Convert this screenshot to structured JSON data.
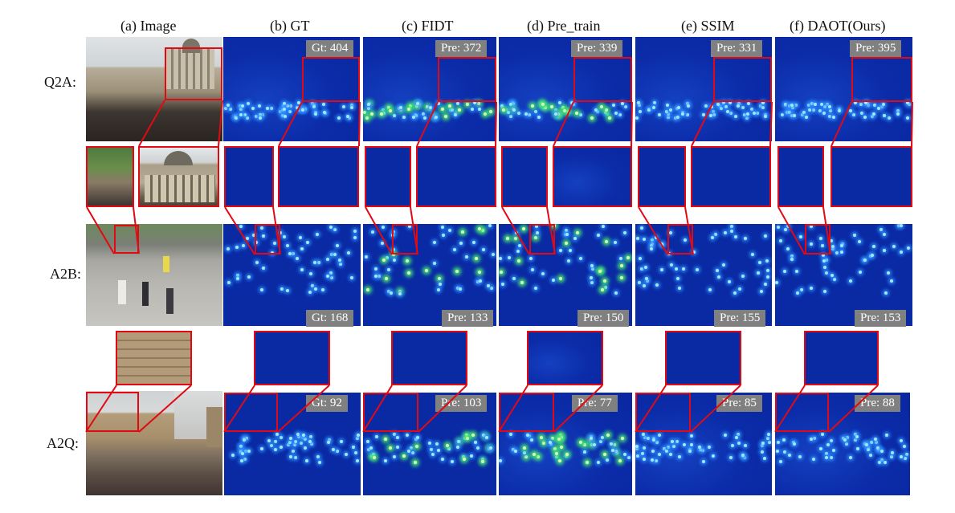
{
  "headers": [
    "(a) Image",
    "(b) GT",
    "(c) FIDT",
    "(d) Pre_train",
    "(e) SSIM",
    "(f) DAOT(Ours)"
  ],
  "rows": [
    "Q2A:",
    "A2B:",
    "A2Q:"
  ],
  "counts": {
    "q2a": [
      "Gt: 404",
      "Pre: 372",
      "Pre: 339",
      "Pre: 331",
      "Pre: 395"
    ],
    "a2b": [
      "Gt: 168",
      "Pre: 133",
      "Pre: 150",
      "Pre: 155",
      "Pre: 153"
    ],
    "a2q": [
      "Gt: 92",
      "Pre: 103",
      "Pre: 77",
      "Pre: 85",
      "Pre: 88"
    ]
  },
  "colors": {
    "density_bg": "#0a2aa4",
    "highlight_box": "#e10a12",
    "badge_bg": "#808080"
  }
}
